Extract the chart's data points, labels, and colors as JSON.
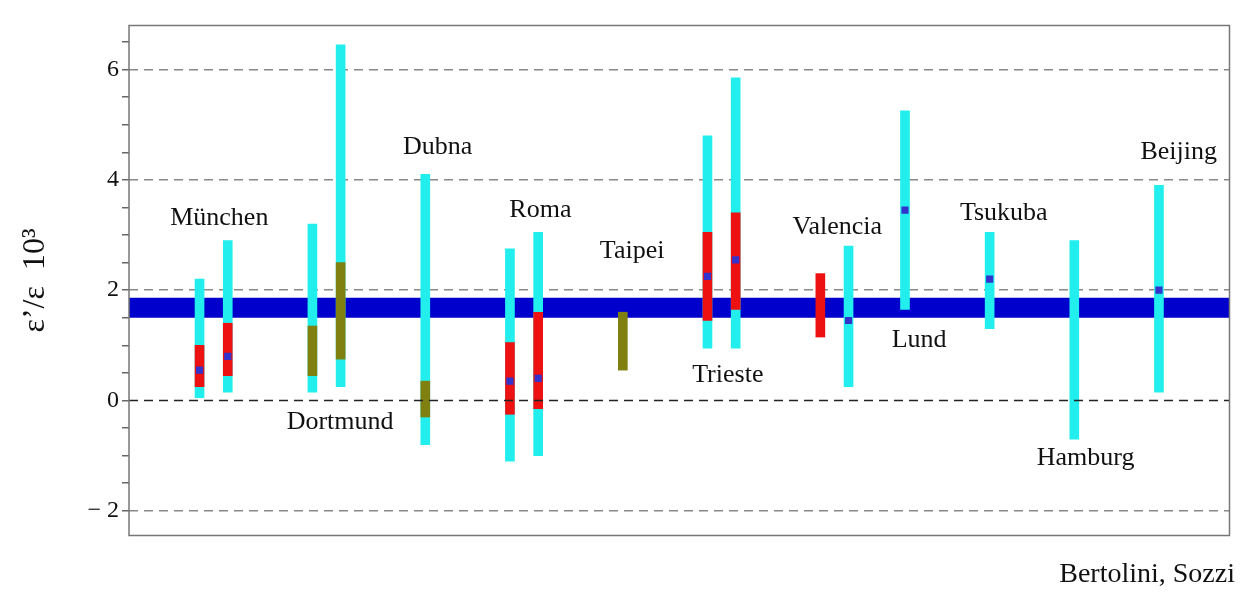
{
  "chart_data": {
    "type": "bar",
    "ylabel": "ε’/ε  10³",
    "tick_labels": "y",
    "grid": "y",
    "categories": [
      null,
      null,
      null,
      null,
      null,
      null,
      null,
      null,
      null,
      null,
      null,
      null,
      null,
      null,
      null,
      null,
      null,
      null,
      null,
      null,
      null,
      null,
      null,
      null,
      null,
      null,
      null,
      null,
      null,
      null,
      null,
      null,
      null,
      null,
      null,
      null,
      null,
      null,
      null
    ],
    "ylim": [
      -2.45,
      6.8
    ],
    "yticks": [
      {
        "value": -2,
        "label": "− 2"
      },
      {
        "value": -1.5,
        "label": null
      },
      {
        "value": -1,
        "label": null
      },
      {
        "value": -0.5,
        "label": null
      },
      0,
      {
        "value": 0.5,
        "label": null
      },
      {
        "value": 1,
        "label": null
      },
      {
        "value": 1.5,
        "label": null
      },
      2,
      {
        "value": 2.5,
        "label": null
      },
      {
        "value": 3,
        "label": null
      },
      {
        "value": 3.5,
        "label": null
      },
      4,
      {
        "value": 4.5,
        "label": null
      },
      {
        "value": 5,
        "label": null
      },
      {
        "value": 5.5,
        "label": null
      },
      6,
      {
        "value": 6.5,
        "label": null
      }
    ],
    "ref_lines": [
      {
        "axis": "y",
        "value": 0,
        "color": "#222222",
        "line_style": "dashed"
      }
    ],
    "bands": [
      {
        "axis": "y",
        "from": 1.5,
        "to": 1.86,
        "color": "#0000cc"
      }
    ],
    "series": [
      {
        "color": "#22eeee",
        "base": [
          null,
          null,
          0.05,
          0.15,
          null,
          null,
          0.15,
          0.25,
          null,
          null,
          -0.8,
          null,
          null,
          -1.1,
          -1.0,
          null,
          null,
          null,
          null,
          null,
          0.95,
          0.95,
          null,
          null,
          null,
          0.25,
          null,
          1.65,
          null,
          null,
          1.3,
          null,
          null,
          -0.7,
          null,
          null,
          0.15,
          null,
          null
        ],
        "values": [
          null,
          null,
          2.15,
          2.75,
          null,
          null,
          3.05,
          6.2,
          null,
          null,
          4.9,
          null,
          null,
          3.85,
          4.05,
          null,
          null,
          null,
          null,
          null,
          3.85,
          4.9,
          null,
          null,
          null,
          2.55,
          null,
          3.6,
          null,
          null,
          1.75,
          null,
          null,
          3.6,
          null,
          null,
          3.75,
          null,
          null
        ]
      },
      {
        "color": "#ee1111",
        "base": [
          null,
          null,
          0.25,
          0.45,
          null,
          null,
          null,
          null,
          null,
          null,
          null,
          null,
          null,
          -0.25,
          -0.15,
          null,
          null,
          null,
          null,
          null,
          1.45,
          1.65,
          null,
          null,
          1.15,
          null,
          null,
          null,
          null,
          null,
          null,
          null,
          null,
          null,
          null,
          null,
          null,
          null,
          null
        ],
        "values": [
          null,
          null,
          0.75,
          0.95,
          null,
          null,
          null,
          null,
          null,
          null,
          null,
          null,
          null,
          1.3,
          1.75,
          null,
          null,
          null,
          null,
          null,
          1.6,
          1.75,
          null,
          null,
          1.15,
          null,
          null,
          null,
          null,
          null,
          null,
          null,
          null,
          null,
          null,
          null,
          null,
          null,
          null
        ]
      },
      {
        "color": "#808010",
        "base": [
          null,
          null,
          null,
          null,
          null,
          null,
          0.45,
          0.75,
          null,
          null,
          -0.3,
          null,
          null,
          null,
          null,
          null,
          null,
          0.55,
          null,
          null,
          null,
          null,
          null,
          null,
          null,
          null,
          null,
          null,
          null,
          null,
          null,
          null,
          null,
          null,
          null,
          null,
          null,
          null,
          null
        ],
        "values": [
          null,
          null,
          null,
          null,
          null,
          null,
          0.9,
          1.75,
          null,
          null,
          0.65,
          null,
          null,
          null,
          null,
          null,
          null,
          1.05,
          null,
          null,
          null,
          null,
          null,
          null,
          null,
          null,
          null,
          null,
          null,
          null,
          null,
          null,
          null,
          null,
          null,
          null,
          null,
          null,
          null
        ]
      },
      {
        "type": "scatter",
        "color": "#3333cc",
        "marker": "square",
        "values": [
          null,
          null,
          0.55,
          0.8,
          null,
          null,
          null,
          null,
          null,
          null,
          null,
          null,
          null,
          0.35,
          0.4,
          null,
          null,
          null,
          null,
          null,
          2.25,
          2.55,
          null,
          null,
          null,
          1.45,
          null,
          3.45,
          null,
          null,
          2.2,
          null,
          null,
          null,
          null,
          null,
          2.0,
          null,
          null
        ]
      }
    ],
    "annotations": [
      "München",
      "Dortmund",
      "Dubna",
      "Roma",
      "Taipei",
      "Trieste",
      "Valencia",
      "Lund",
      "Tsukuba",
      "Hamburg",
      "Beijing",
      "Bertolini, Sozzi"
    ]
  }
}
